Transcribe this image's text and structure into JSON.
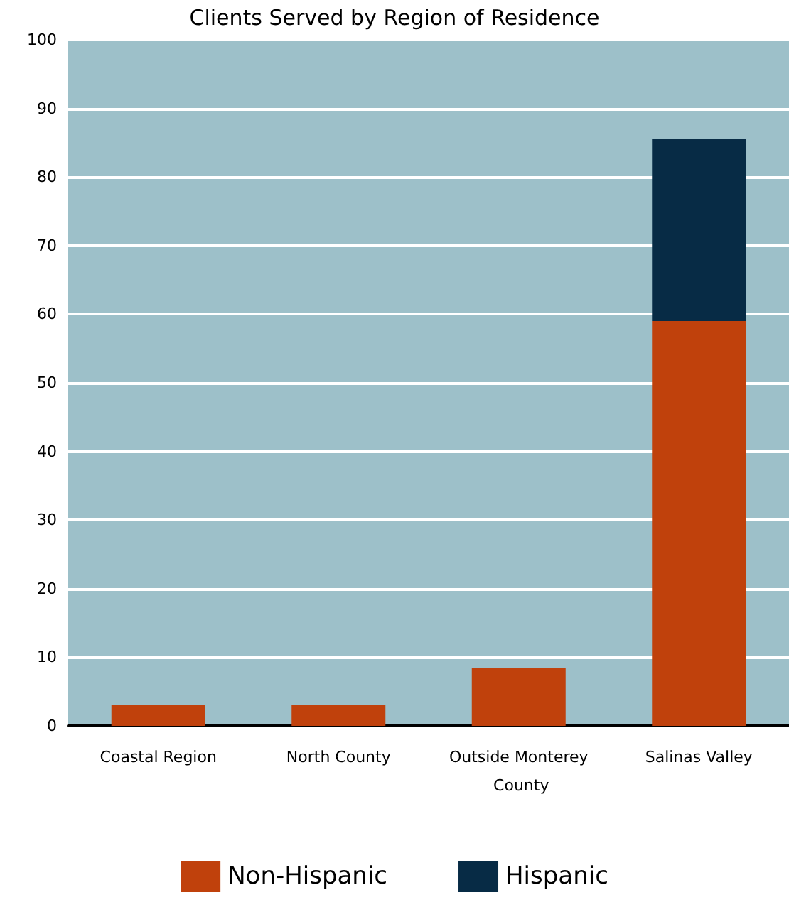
{
  "chart_data": {
    "type": "bar",
    "title": "Clients Served by Region of Residence",
    "categories": [
      "Coastal Region",
      "North County",
      "Outside Monterey County",
      "Salinas Valley"
    ],
    "series": [
      {
        "name": "Non-Hispanic",
        "color": "#c0410c",
        "values": [
          3,
          3,
          8.5,
          59
        ]
      },
      {
        "name": "Hispanic",
        "color": "#072b45",
        "values": [
          0,
          0,
          0,
          26.5
        ]
      }
    ],
    "stacked": true,
    "ylim": [
      0,
      100
    ],
    "yticks": [
      0,
      10,
      20,
      30,
      40,
      50,
      60,
      70,
      80,
      90,
      100
    ],
    "grid": "y",
    "legend": "bottom"
  }
}
